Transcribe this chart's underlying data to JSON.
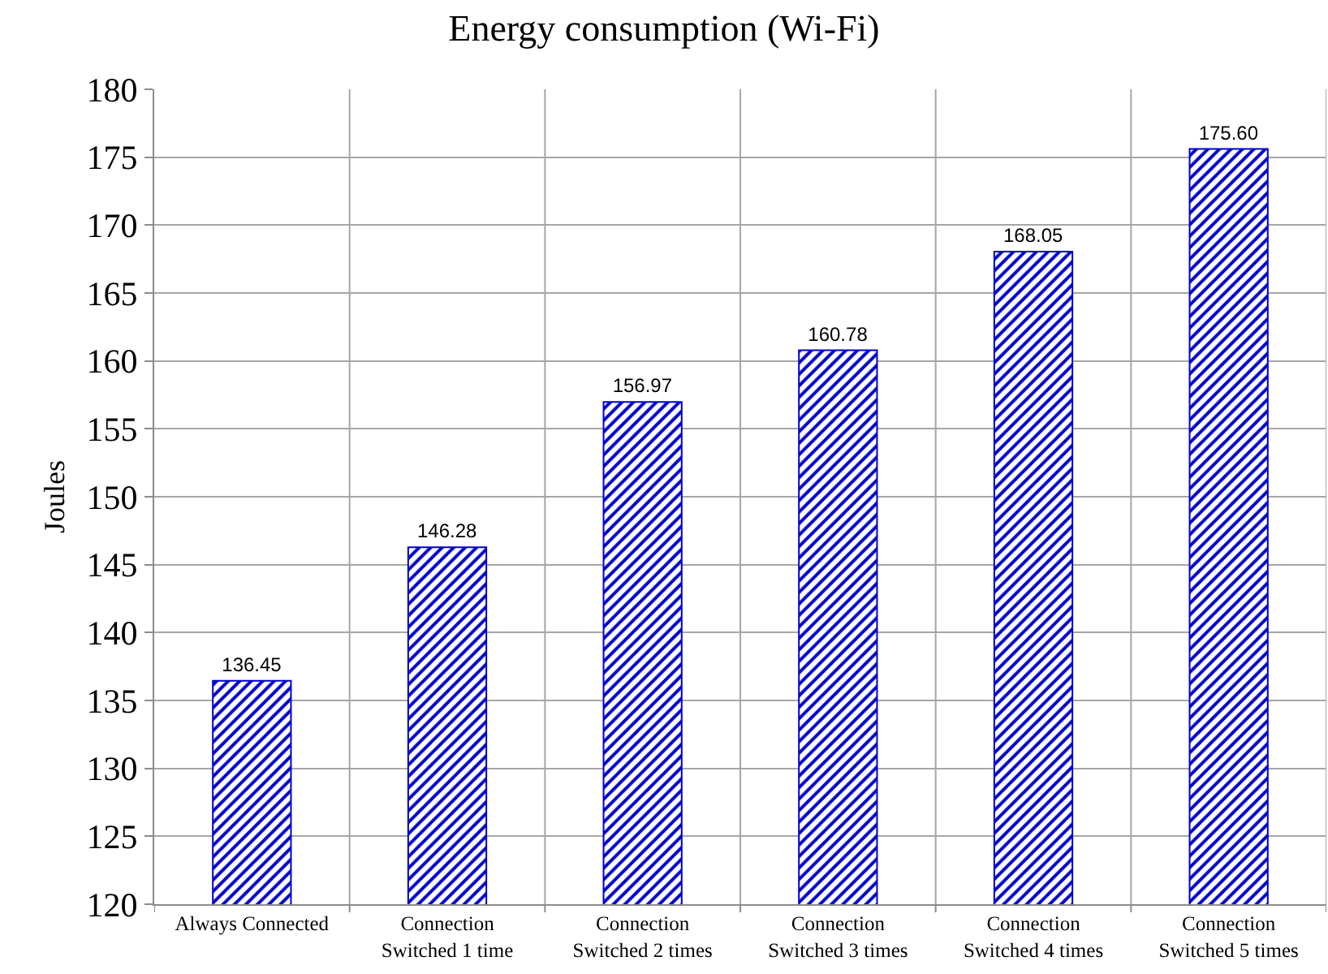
{
  "chart_data": {
    "type": "bar",
    "title": "Energy consumption (Wi-Fi)",
    "ylabel": "Joules",
    "categories": [
      "Always Connected",
      "Connection Switched 1 time",
      "Connection Switched 2 times",
      "Connection Switched 3 times",
      "Connection Switched 4 times",
      "Connection Switched 5 times"
    ],
    "values": [
      136.45,
      146.28,
      156.97,
      160.78,
      168.05,
      175.6
    ],
    "value_labels": [
      "136.45",
      "146.28",
      "156.97",
      "160.78",
      "168.05",
      "175.60"
    ],
    "color": "#0000cc",
    "ylim": [
      120,
      180
    ],
    "yticks": [
      120,
      125,
      130,
      135,
      140,
      145,
      150,
      155,
      160,
      165,
      170,
      175,
      180
    ],
    "grid": true
  }
}
